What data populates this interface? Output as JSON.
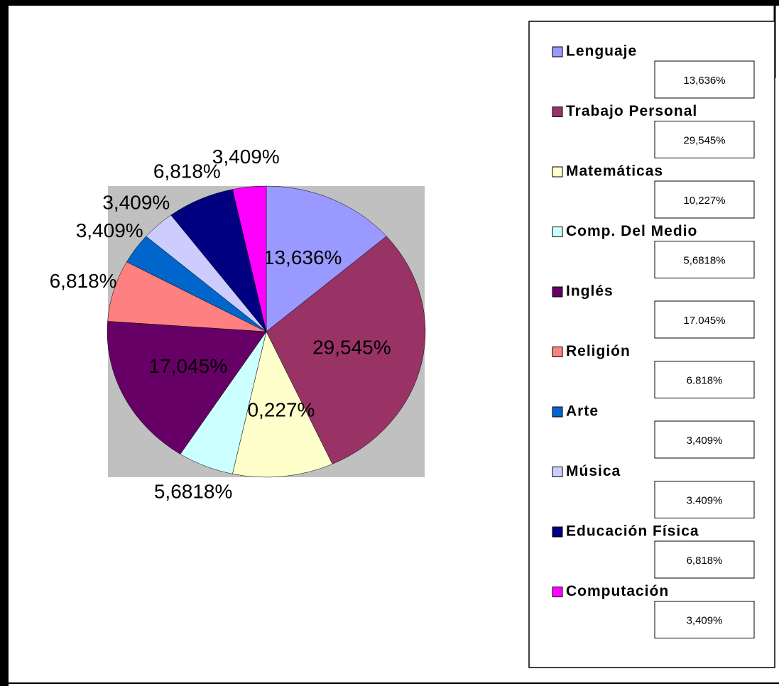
{
  "chart_data": {
    "type": "pie",
    "categories": [
      "Lenguaje",
      "Trabajo Personal",
      "Matemáticas",
      "Comp. Del Medio",
      "Inglés",
      "Religión",
      "Arte",
      "Música",
      "Educación Física",
      "Computación"
    ],
    "values": [
      13.636,
      29.545,
      10.227,
      5.6818,
      17.045,
      6.818,
      3.409,
      3.409,
      6.818,
      3.409
    ],
    "value_labels": [
      "13,636%",
      "29,545%",
      "10,227%",
      "5,6818%",
      "17,045%",
      "6,818%",
      "3,409%",
      "3,409%",
      "6,818%",
      "3,409%"
    ],
    "legend_labels": [
      "13,636%",
      "29,545%",
      "10,227%",
      "5,6818%",
      "17.045%",
      "6.818%",
      "3,409%",
      "3.409%",
      "6,818%",
      "3,409%"
    ],
    "colors": [
      "#9999ff",
      "#993366",
      "#ffffcc",
      "#ccffff",
      "#660066",
      "#ff8080",
      "#0066cc",
      "#ccccff",
      "#000080",
      "#ff00ff"
    ]
  }
}
